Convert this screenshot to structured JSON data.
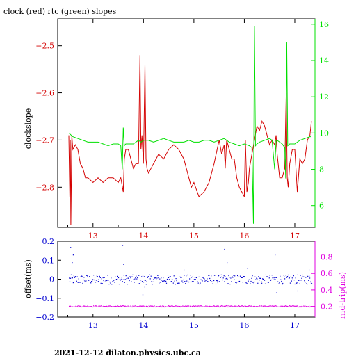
{
  "title": "clock (red) rtc (green) slopes",
  "footer": "2021-12-12  dilaton.physics.ubc.ca",
  "colors": {
    "clock": "#d40000",
    "rtc": "#00e000",
    "offset": "#0000d0",
    "rndtrip": "#e000e0",
    "axis": "#000000"
  },
  "chart_data": [
    {
      "type": "line",
      "title": "clock (red) rtc (green) slopes",
      "xlabel": "",
      "ylabel": "clockslope",
      "y2label": "",
      "xlim": [
        12.3,
        17.4
      ],
      "ylim": [
        -2.885,
        -2.443
      ],
      "y2lim": [
        4.8,
        16.3
      ],
      "xticks": [
        "13",
        "14",
        "15",
        "16",
        "17"
      ],
      "yticks": [
        "-2.5",
        "-2.6",
        "-2.7",
        "-2.8"
      ],
      "y2ticks": [
        "6",
        "8",
        "10",
        "12",
        "14",
        "16"
      ],
      "series": [
        {
          "name": "clock",
          "axis": "left",
          "x": [
            12.52,
            12.54,
            12.55,
            12.56,
            12.58,
            12.6,
            12.65,
            12.7,
            12.75,
            12.8,
            12.85,
            12.9,
            13.0,
            13.1,
            13.2,
            13.3,
            13.4,
            13.5,
            13.55,
            13.6,
            13.62,
            13.65,
            13.7,
            13.75,
            13.8,
            13.85,
            13.9,
            13.93,
            13.95,
            13.97,
            14.0,
            14.03,
            14.05,
            14.07,
            14.1,
            14.15,
            14.2,
            14.3,
            14.4,
            14.5,
            14.6,
            14.7,
            14.8,
            14.9,
            14.95,
            15.0,
            15.1,
            15.2,
            15.3,
            15.4,
            15.5,
            15.55,
            15.6,
            15.62,
            15.65,
            15.7,
            15.75,
            15.8,
            15.85,
            15.9,
            15.95,
            16.0,
            16.02,
            16.05,
            16.08,
            16.1,
            16.15,
            16.2,
            16.25,
            16.3,
            16.35,
            16.4,
            16.45,
            16.5,
            16.55,
            16.6,
            16.63,
            16.65,
            16.7,
            16.75,
            16.8,
            16.83,
            16.85,
            16.87,
            16.9,
            16.95,
            17.0,
            17.05,
            17.1,
            17.15,
            17.2,
            17.25,
            17.3,
            17.33
          ],
          "y": [
            -2.69,
            -2.82,
            -2.7,
            -2.88,
            -2.69,
            -2.72,
            -2.71,
            -2.72,
            -2.75,
            -2.76,
            -2.78,
            -2.78,
            -2.79,
            -2.78,
            -2.79,
            -2.78,
            -2.78,
            -2.79,
            -2.78,
            -2.81,
            -2.74,
            -2.72,
            -2.72,
            -2.74,
            -2.76,
            -2.75,
            -2.75,
            -2.52,
            -2.72,
            -2.69,
            -2.75,
            -2.54,
            -2.74,
            -2.76,
            -2.77,
            -2.76,
            -2.75,
            -2.73,
            -2.74,
            -2.72,
            -2.71,
            -2.72,
            -2.74,
            -2.78,
            -2.8,
            -2.79,
            -2.82,
            -2.81,
            -2.79,
            -2.75,
            -2.7,
            -2.73,
            -2.71,
            -2.76,
            -2.7,
            -2.72,
            -2.74,
            -2.74,
            -2.78,
            -2.8,
            -2.81,
            -2.82,
            -2.7,
            -2.81,
            -2.79,
            -2.76,
            -2.73,
            -2.7,
            -2.67,
            -2.68,
            -2.66,
            -2.67,
            -2.69,
            -2.71,
            -2.7,
            -2.71,
            -2.69,
            -2.73,
            -2.78,
            -2.78,
            -2.76,
            -2.6,
            -2.78,
            -2.8,
            -2.75,
            -2.72,
            -2.72,
            -2.81,
            -2.74,
            -2.75,
            -2.74,
            -2.7,
            -2.69,
            -2.66
          ]
        },
        {
          "name": "rtc",
          "axis": "right",
          "x": [
            12.52,
            12.6,
            12.7,
            12.8,
            12.9,
            13.0,
            13.1,
            13.2,
            13.3,
            13.4,
            13.5,
            13.55,
            13.58,
            13.6,
            13.62,
            13.65,
            13.7,
            13.8,
            13.9,
            13.95,
            14.0,
            14.1,
            14.2,
            14.3,
            14.4,
            14.5,
            14.6,
            14.7,
            14.8,
            14.9,
            15.0,
            15.1,
            15.2,
            15.3,
            15.4,
            15.5,
            15.6,
            15.7,
            15.8,
            15.9,
            16.0,
            16.1,
            16.15,
            16.18,
            16.2,
            16.22,
            16.25,
            16.3,
            16.4,
            16.5,
            16.55,
            16.6,
            16.63,
            16.65,
            16.7,
            16.75,
            16.8,
            16.82,
            16.84,
            16.86,
            16.9,
            17.0,
            17.05,
            17.1,
            17.2,
            17.3,
            17.33
          ],
          "y": [
            10.0,
            9.8,
            9.7,
            9.6,
            9.5,
            9.5,
            9.5,
            9.4,
            9.3,
            9.4,
            9.4,
            9.3,
            8.0,
            10.3,
            9.3,
            9.4,
            9.4,
            9.4,
            9.6,
            9.5,
            9.6,
            9.6,
            9.5,
            9.6,
            9.7,
            9.6,
            9.5,
            9.5,
            9.5,
            9.6,
            9.5,
            9.5,
            9.6,
            9.6,
            9.5,
            9.6,
            9.7,
            9.5,
            9.4,
            9.3,
            9.4,
            9.3,
            9.2,
            5.0,
            15.9,
            9.3,
            9.4,
            9.5,
            9.6,
            9.7,
            9.6,
            8.0,
            9.6,
            9.6,
            9.5,
            9.4,
            9.2,
            7.5,
            15.0,
            9.3,
            9.4,
            9.4,
            9.5,
            9.6,
            9.7,
            9.8,
            9.8
          ]
        }
      ]
    },
    {
      "type": "scatter",
      "xlabel": "",
      "ylabel": "offset(ms)",
      "y2label": "rnd-trip(ms)",
      "xlim": [
        12.3,
        17.4
      ],
      "ylim": [
        -0.2,
        0.2
      ],
      "y2lim": [
        0.07,
        0.99
      ],
      "xticks": [
        "13",
        "14",
        "15",
        "16",
        "17"
      ],
      "yticks": [
        "0.2",
        "0.1",
        "0",
        "-0.1",
        "-0.2"
      ],
      "y2ticks": [
        "0.8",
        "0.6",
        "0.4",
        "0.2"
      ],
      "series": [
        {
          "name": "offset",
          "axis": "left",
          "x_start": 12.52,
          "x_end": 17.33,
          "center": 0.0,
          "spread": 0.025,
          "count": 360,
          "outliers": [
            [
              12.55,
              0.17
            ],
            [
              12.6,
              0.13
            ],
            [
              12.58,
              0.09
            ],
            [
              13.58,
              0.18
            ],
            [
              13.6,
              0.08
            ],
            [
              13.98,
              -0.08
            ],
            [
              14.02,
              -0.04
            ],
            [
              15.6,
              0.16
            ],
            [
              15.65,
              0.09
            ],
            [
              16.6,
              0.13
            ],
            [
              16.63,
              -0.07
            ],
            [
              17.05,
              -0.06
            ],
            [
              17.28,
              0.05
            ],
            [
              16.05,
              0.06
            ],
            [
              14.8,
              0.05
            ]
          ]
        },
        {
          "name": "rnd-trip",
          "axis": "right",
          "x_start": 12.52,
          "x_end": 17.33,
          "center": 0.205,
          "spread": 0.008,
          "count": 360,
          "outliers": []
        }
      ]
    }
  ]
}
